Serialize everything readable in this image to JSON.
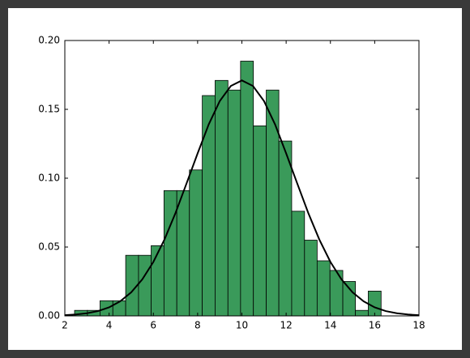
{
  "chart_data": {
    "type": "histogram",
    "bins": [
      2.44,
      3.02,
      3.59,
      4.17,
      4.75,
      5.33,
      5.9,
      6.48,
      7.06,
      7.63,
      8.21,
      8.79,
      9.37,
      9.94,
      10.52,
      11.1,
      11.67,
      12.25,
      12.83,
      13.4,
      13.98,
      14.56,
      15.13,
      15.71,
      16.29
    ],
    "values": [
      0.004,
      0.004,
      0.011,
      0.011,
      0.044,
      0.044,
      0.051,
      0.091,
      0.091,
      0.106,
      0.16,
      0.171,
      0.164,
      0.185,
      0.138,
      0.164,
      0.127,
      0.076,
      0.055,
      0.04,
      0.033,
      0.025,
      0.004,
      0.018
    ],
    "color": "#3a9a5a",
    "curve": {
      "color": "#000000",
      "x": [
        2,
        2.5,
        3,
        3.5,
        4,
        4.5,
        5,
        5.5,
        6,
        6.5,
        7,
        7.5,
        8,
        8.5,
        9,
        9.5,
        10,
        10.5,
        11,
        11.5,
        12,
        12.5,
        13,
        13.5,
        14,
        14.5,
        15,
        15.5,
        16,
        16.5,
        17,
        17.5,
        18
      ],
      "y": [
        0.0005,
        0.001,
        0.0019,
        0.0035,
        0.0062,
        0.0106,
        0.0171,
        0.0265,
        0.0392,
        0.0554,
        0.0747,
        0.0962,
        0.118,
        0.139,
        0.156,
        0.167,
        0.171,
        0.167,
        0.156,
        0.139,
        0.118,
        0.0962,
        0.0747,
        0.0554,
        0.0392,
        0.0265,
        0.0171,
        0.0106,
        0.0062,
        0.0035,
        0.0019,
        0.001,
        0.0005
      ]
    },
    "xlim": [
      2,
      18
    ],
    "ylim": [
      0,
      0.2
    ],
    "xticks": [
      2,
      4,
      6,
      8,
      10,
      12,
      14,
      16,
      18
    ],
    "yticks": [
      {
        "value": 0,
        "label": "0.00"
      },
      {
        "value": 0.05,
        "label": "0.05"
      },
      {
        "value": 0.1,
        "label": "0.10"
      },
      {
        "value": 0.15,
        "label": "0.15"
      },
      {
        "value": 0.2,
        "label": "0.20"
      }
    ]
  }
}
